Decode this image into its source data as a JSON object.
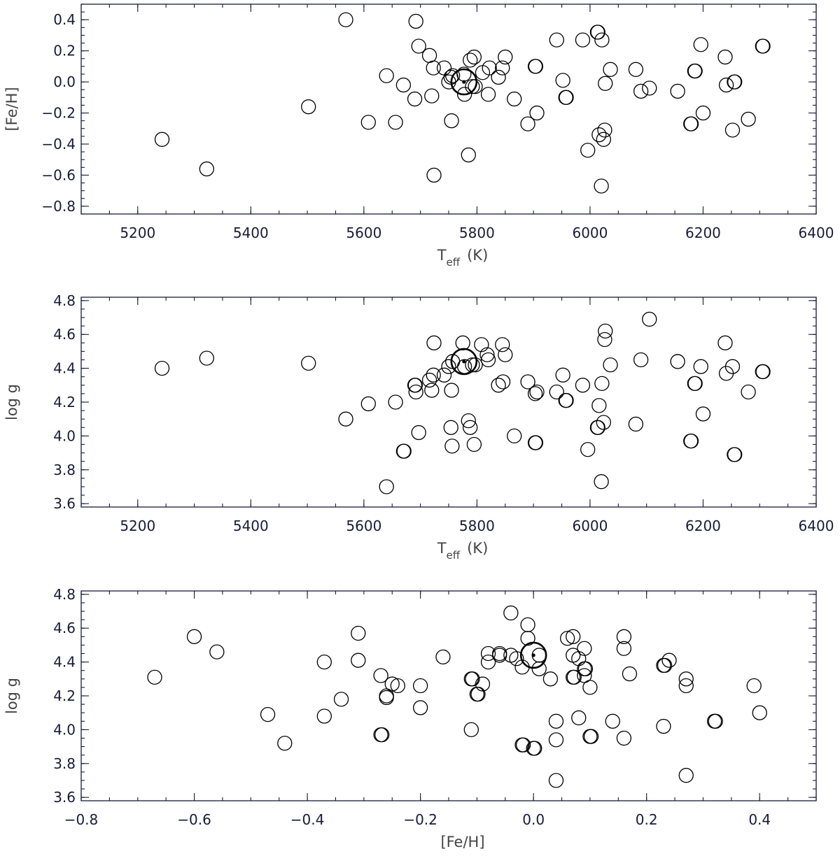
{
  "chart_data": [
    {
      "type": "scatter",
      "xlabel": "T_eff (K)",
      "xlabel_main": "T",
      "xlabel_sub": "eff",
      "xlabel_units": "(K)",
      "ylabel": "[Fe/H]",
      "xlim": [
        5100,
        6400
      ],
      "ylim": [
        -0.85,
        0.5
      ],
      "xticks": [
        5200,
        5400,
        5600,
        5800,
        6000,
        6200,
        6400
      ],
      "yticks": [
        -0.8,
        -0.6,
        -0.4,
        -0.2,
        0.0,
        0.2,
        0.4
      ],
      "x_minor_step": 50,
      "y_minor_step": 0.05,
      "sun": {
        "x": 5777,
        "y": 0.0
      },
      "points": [
        {
          "x": 5243,
          "y": -0.37
        },
        {
          "x": 5322,
          "y": -0.56
        },
        {
          "x": 5502,
          "y": -0.16
        },
        {
          "x": 5568,
          "y": 0.4
        },
        {
          "x": 5608,
          "y": -0.26
        },
        {
          "x": 5640,
          "y": 0.04
        },
        {
          "x": 5656,
          "y": -0.26
        },
        {
          "x": 5670,
          "y": -0.02
        },
        {
          "x": 5690,
          "y": -0.11
        },
        {
          "x": 5692,
          "y": 0.39
        },
        {
          "x": 5697,
          "y": 0.23
        },
        {
          "x": 5716,
          "y": 0.17
        },
        {
          "x": 5720,
          "y": -0.09
        },
        {
          "x": 5723,
          "y": 0.09
        },
        {
          "x": 5724,
          "y": -0.6
        },
        {
          "x": 5742,
          "y": 0.09
        },
        {
          "x": 5750,
          "y": 0.0
        },
        {
          "x": 5754,
          "y": 0.03
        },
        {
          "x": 5755,
          "y": -0.25
        },
        {
          "x": 5757,
          "y": 0.04
        },
        {
          "x": 5777,
          "y": 0.05
        },
        {
          "x": 5778,
          "y": -0.08
        },
        {
          "x": 5785,
          "y": -0.47
        },
        {
          "x": 5788,
          "y": 0.14
        },
        {
          "x": 5792,
          "y": -0.03
        },
        {
          "x": 5795,
          "y": 0.16
        },
        {
          "x": 5797,
          "y": -0.03
        },
        {
          "x": 5810,
          "y": 0.06
        },
        {
          "x": 5820,
          "y": -0.08
        },
        {
          "x": 5822,
          "y": 0.09
        },
        {
          "x": 5838,
          "y": 0.03
        },
        {
          "x": 5845,
          "y": 0.09
        },
        {
          "x": 5850,
          "y": 0.16
        },
        {
          "x": 5866,
          "y": -0.11
        },
        {
          "x": 5890,
          "y": -0.27
        },
        {
          "x": 5903,
          "y": 0.1
        },
        {
          "x": 5904,
          "y": 0.1
        },
        {
          "x": 5906,
          "y": -0.2
        },
        {
          "x": 5941,
          "y": 0.27
        },
        {
          "x": 5952,
          "y": 0.01
        },
        {
          "x": 5957,
          "y": -0.1
        },
        {
          "x": 5958,
          "y": -0.1
        },
        {
          "x": 5987,
          "y": 0.27
        },
        {
          "x": 5996,
          "y": -0.44
        },
        {
          "x": 6013,
          "y": 0.32
        },
        {
          "x": 6014,
          "y": 0.32
        },
        {
          "x": 6016,
          "y": -0.34
        },
        {
          "x": 6020,
          "y": -0.67
        },
        {
          "x": 6021,
          "y": 0.27
        },
        {
          "x": 6024,
          "y": -0.37
        },
        {
          "x": 6026,
          "y": -0.31
        },
        {
          "x": 6027,
          "y": -0.01
        },
        {
          "x": 6036,
          "y": 0.08
        },
        {
          "x": 6081,
          "y": 0.08
        },
        {
          "x": 6090,
          "y": -0.06
        },
        {
          "x": 6105,
          "y": -0.04
        },
        {
          "x": 6155,
          "y": -0.06
        },
        {
          "x": 6178,
          "y": -0.27
        },
        {
          "x": 6179,
          "y": -0.27
        },
        {
          "x": 6185,
          "y": 0.07
        },
        {
          "x": 6186,
          "y": 0.07
        },
        {
          "x": 6196,
          "y": 0.24
        },
        {
          "x": 6200,
          "y": -0.2
        },
        {
          "x": 6239,
          "y": 0.16
        },
        {
          "x": 6241,
          "y": -0.02
        },
        {
          "x": 6252,
          "y": -0.31
        },
        {
          "x": 6255,
          "y": 0.0
        },
        {
          "x": 6256,
          "y": 0.0
        },
        {
          "x": 6280,
          "y": -0.24
        },
        {
          "x": 6305,
          "y": 0.23
        },
        {
          "x": 6306,
          "y": 0.23
        }
      ]
    },
    {
      "type": "scatter",
      "xlabel": "T_eff (K)",
      "xlabel_main": "T",
      "xlabel_sub": "eff",
      "xlabel_units": "(K)",
      "ylabel": "log g",
      "xlim": [
        5100,
        6400
      ],
      "ylim": [
        3.58,
        4.82
      ],
      "xticks": [
        5200,
        5400,
        5600,
        5800,
        6000,
        6200,
        6400
      ],
      "yticks": [
        3.6,
        3.8,
        4.0,
        4.2,
        4.4,
        4.6,
        4.8
      ],
      "x_minor_step": 50,
      "y_minor_step": 0.05,
      "sun": {
        "x": 5777,
        "y": 4.44
      },
      "points": [
        {
          "x": 5243,
          "y": 4.4
        },
        {
          "x": 5322,
          "y": 4.46
        },
        {
          "x": 5502,
          "y": 4.43
        },
        {
          "x": 5568,
          "y": 4.1
        },
        {
          "x": 5608,
          "y": 4.19
        },
        {
          "x": 5640,
          "y": 3.7
        },
        {
          "x": 5656,
          "y": 4.2
        },
        {
          "x": 5670,
          "y": 3.91
        },
        {
          "x": 5671,
          "y": 3.91
        },
        {
          "x": 5690,
          "y": 4.3
        },
        {
          "x": 5691,
          "y": 4.3
        },
        {
          "x": 5692,
          "y": 4.26
        },
        {
          "x": 5697,
          "y": 4.02
        },
        {
          "x": 5716,
          "y": 4.33
        },
        {
          "x": 5720,
          "y": 4.27
        },
        {
          "x": 5723,
          "y": 4.36
        },
        {
          "x": 5724,
          "y": 4.55
        },
        {
          "x": 5742,
          "y": 4.36
        },
        {
          "x": 5750,
          "y": 4.41
        },
        {
          "x": 5754,
          "y": 4.05
        },
        {
          "x": 5755,
          "y": 4.27
        },
        {
          "x": 5756,
          "y": 3.94
        },
        {
          "x": 5757,
          "y": 4.44
        },
        {
          "x": 5775,
          "y": 4.55
        },
        {
          "x": 5778,
          "y": 4.41
        },
        {
          "x": 5785,
          "y": 4.09
        },
        {
          "x": 5788,
          "y": 4.05
        },
        {
          "x": 5792,
          "y": 4.42
        },
        {
          "x": 5795,
          "y": 3.95
        },
        {
          "x": 5797,
          "y": 4.42
        },
        {
          "x": 5808,
          "y": 4.54
        },
        {
          "x": 5818,
          "y": 4.48
        },
        {
          "x": 5820,
          "y": 4.45
        },
        {
          "x": 5838,
          "y": 4.3
        },
        {
          "x": 5845,
          "y": 4.54
        },
        {
          "x": 5846,
          "y": 4.32
        },
        {
          "x": 5850,
          "y": 4.48
        },
        {
          "x": 5866,
          "y": 4.0
        },
        {
          "x": 5890,
          "y": 4.32
        },
        {
          "x": 5903,
          "y": 3.96
        },
        {
          "x": 5904,
          "y": 3.96
        },
        {
          "x": 5903,
          "y": 4.25
        },
        {
          "x": 5906,
          "y": 4.26
        },
        {
          "x": 5941,
          "y": 4.26
        },
        {
          "x": 5952,
          "y": 4.36
        },
        {
          "x": 5957,
          "y": 4.21
        },
        {
          "x": 5958,
          "y": 4.21
        },
        {
          "x": 5987,
          "y": 4.3
        },
        {
          "x": 5996,
          "y": 3.92
        },
        {
          "x": 6013,
          "y": 4.05
        },
        {
          "x": 6014,
          "y": 4.05
        },
        {
          "x": 6016,
          "y": 4.18
        },
        {
          "x": 6020,
          "y": 3.73
        },
        {
          "x": 6021,
          "y": 4.31
        },
        {
          "x": 6024,
          "y": 4.08
        },
        {
          "x": 6026,
          "y": 4.57
        },
        {
          "x": 6027,
          "y": 4.62
        },
        {
          "x": 6036,
          "y": 4.42
        },
        {
          "x": 6081,
          "y": 4.07
        },
        {
          "x": 6090,
          "y": 4.45
        },
        {
          "x": 6105,
          "y": 4.69
        },
        {
          "x": 6155,
          "y": 4.44
        },
        {
          "x": 6178,
          "y": 3.97
        },
        {
          "x": 6179,
          "y": 3.97
        },
        {
          "x": 6185,
          "y": 4.31
        },
        {
          "x": 6186,
          "y": 4.31
        },
        {
          "x": 6196,
          "y": 4.41
        },
        {
          "x": 6200,
          "y": 4.13
        },
        {
          "x": 6239,
          "y": 4.55
        },
        {
          "x": 6241,
          "y": 4.37
        },
        {
          "x": 6252,
          "y": 4.41
        },
        {
          "x": 6255,
          "y": 3.89
        },
        {
          "x": 6256,
          "y": 3.89
        },
        {
          "x": 6280,
          "y": 4.26
        },
        {
          "x": 6305,
          "y": 4.38
        },
        {
          "x": 6306,
          "y": 4.38
        }
      ]
    },
    {
      "type": "scatter",
      "xlabel": "[Fe/H]",
      "ylabel": "log g",
      "xlim": [
        -0.8,
        0.5
      ],
      "ylim": [
        3.58,
        4.82
      ],
      "xticks": [
        -0.8,
        -0.6,
        -0.4,
        -0.2,
        0.0,
        0.2,
        0.4
      ],
      "yticks": [
        3.6,
        3.8,
        4.0,
        4.2,
        4.4,
        4.6,
        4.8
      ],
      "x_minor_step": 0.05,
      "y_minor_step": 0.05,
      "sun": {
        "x": 0.0,
        "y": 4.44
      },
      "points": [
        {
          "x": -0.67,
          "y": 4.31
        },
        {
          "x": -0.6,
          "y": 4.55
        },
        {
          "x": -0.56,
          "y": 4.46
        },
        {
          "x": -0.47,
          "y": 4.09
        },
        {
          "x": -0.44,
          "y": 3.92
        },
        {
          "x": -0.37,
          "y": 4.4
        },
        {
          "x": -0.37,
          "y": 4.08
        },
        {
          "x": -0.34,
          "y": 4.18
        },
        {
          "x": -0.31,
          "y": 4.57
        },
        {
          "x": -0.31,
          "y": 4.41
        },
        {
          "x": -0.27,
          "y": 4.32
        },
        {
          "x": -0.27,
          "y": 3.97
        },
        {
          "x": -0.268,
          "y": 3.97
        },
        {
          "x": -0.26,
          "y": 4.2
        },
        {
          "x": -0.26,
          "y": 4.19
        },
        {
          "x": -0.25,
          "y": 4.27
        },
        {
          "x": -0.24,
          "y": 4.26
        },
        {
          "x": -0.2,
          "y": 4.26
        },
        {
          "x": -0.2,
          "y": 4.13
        },
        {
          "x": -0.16,
          "y": 4.43
        },
        {
          "x": -0.11,
          "y": 4.3
        },
        {
          "x": -0.108,
          "y": 4.3
        },
        {
          "x": -0.11,
          "y": 4.0
        },
        {
          "x": -0.1,
          "y": 4.21
        },
        {
          "x": -0.098,
          "y": 4.21
        },
        {
          "x": -0.09,
          "y": 4.27
        },
        {
          "x": -0.08,
          "y": 4.45
        },
        {
          "x": -0.08,
          "y": 4.4
        },
        {
          "x": -0.06,
          "y": 4.45
        },
        {
          "x": -0.06,
          "y": 4.44
        },
        {
          "x": -0.04,
          "y": 4.69
        },
        {
          "x": -0.04,
          "y": 4.44
        },
        {
          "x": -0.03,
          "y": 4.42
        },
        {
          "x": -0.02,
          "y": 3.91
        },
        {
          "x": -0.018,
          "y": 3.91
        },
        {
          "x": -0.02,
          "y": 4.37
        },
        {
          "x": -0.01,
          "y": 4.62
        },
        {
          "x": -0.01,
          "y": 4.54
        },
        {
          "x": 0.0,
          "y": 3.89
        },
        {
          "x": 0.002,
          "y": 3.89
        },
        {
          "x": 0.01,
          "y": 4.44
        },
        {
          "x": 0.01,
          "y": 4.36
        },
        {
          "x": 0.03,
          "y": 4.3
        },
        {
          "x": 0.04,
          "y": 4.05
        },
        {
          "x": 0.04,
          "y": 3.94
        },
        {
          "x": 0.04,
          "y": 3.7
        },
        {
          "x": 0.06,
          "y": 4.54
        },
        {
          "x": 0.07,
          "y": 4.55
        },
        {
          "x": 0.07,
          "y": 4.44
        },
        {
          "x": 0.07,
          "y": 4.31
        },
        {
          "x": 0.072,
          "y": 4.31
        },
        {
          "x": 0.08,
          "y": 4.42
        },
        {
          "x": 0.08,
          "y": 4.07
        },
        {
          "x": 0.09,
          "y": 4.48
        },
        {
          "x": 0.09,
          "y": 4.36
        },
        {
          "x": 0.092,
          "y": 4.36
        },
        {
          "x": 0.09,
          "y": 4.32
        },
        {
          "x": 0.1,
          "y": 4.25
        },
        {
          "x": 0.1,
          "y": 3.96
        },
        {
          "x": 0.102,
          "y": 3.96
        },
        {
          "x": 0.14,
          "y": 4.05
        },
        {
          "x": 0.16,
          "y": 4.55
        },
        {
          "x": 0.16,
          "y": 4.48
        },
        {
          "x": 0.16,
          "y": 3.95
        },
        {
          "x": 0.17,
          "y": 4.33
        },
        {
          "x": 0.23,
          "y": 4.38
        },
        {
          "x": 0.232,
          "y": 4.38
        },
        {
          "x": 0.23,
          "y": 4.02
        },
        {
          "x": 0.24,
          "y": 4.41
        },
        {
          "x": 0.27,
          "y": 4.3
        },
        {
          "x": 0.27,
          "y": 4.26
        },
        {
          "x": 0.27,
          "y": 3.73
        },
        {
          "x": 0.32,
          "y": 4.05
        },
        {
          "x": 0.322,
          "y": 4.05
        },
        {
          "x": 0.39,
          "y": 4.26
        },
        {
          "x": 0.4,
          "y": 4.1
        }
      ]
    }
  ]
}
